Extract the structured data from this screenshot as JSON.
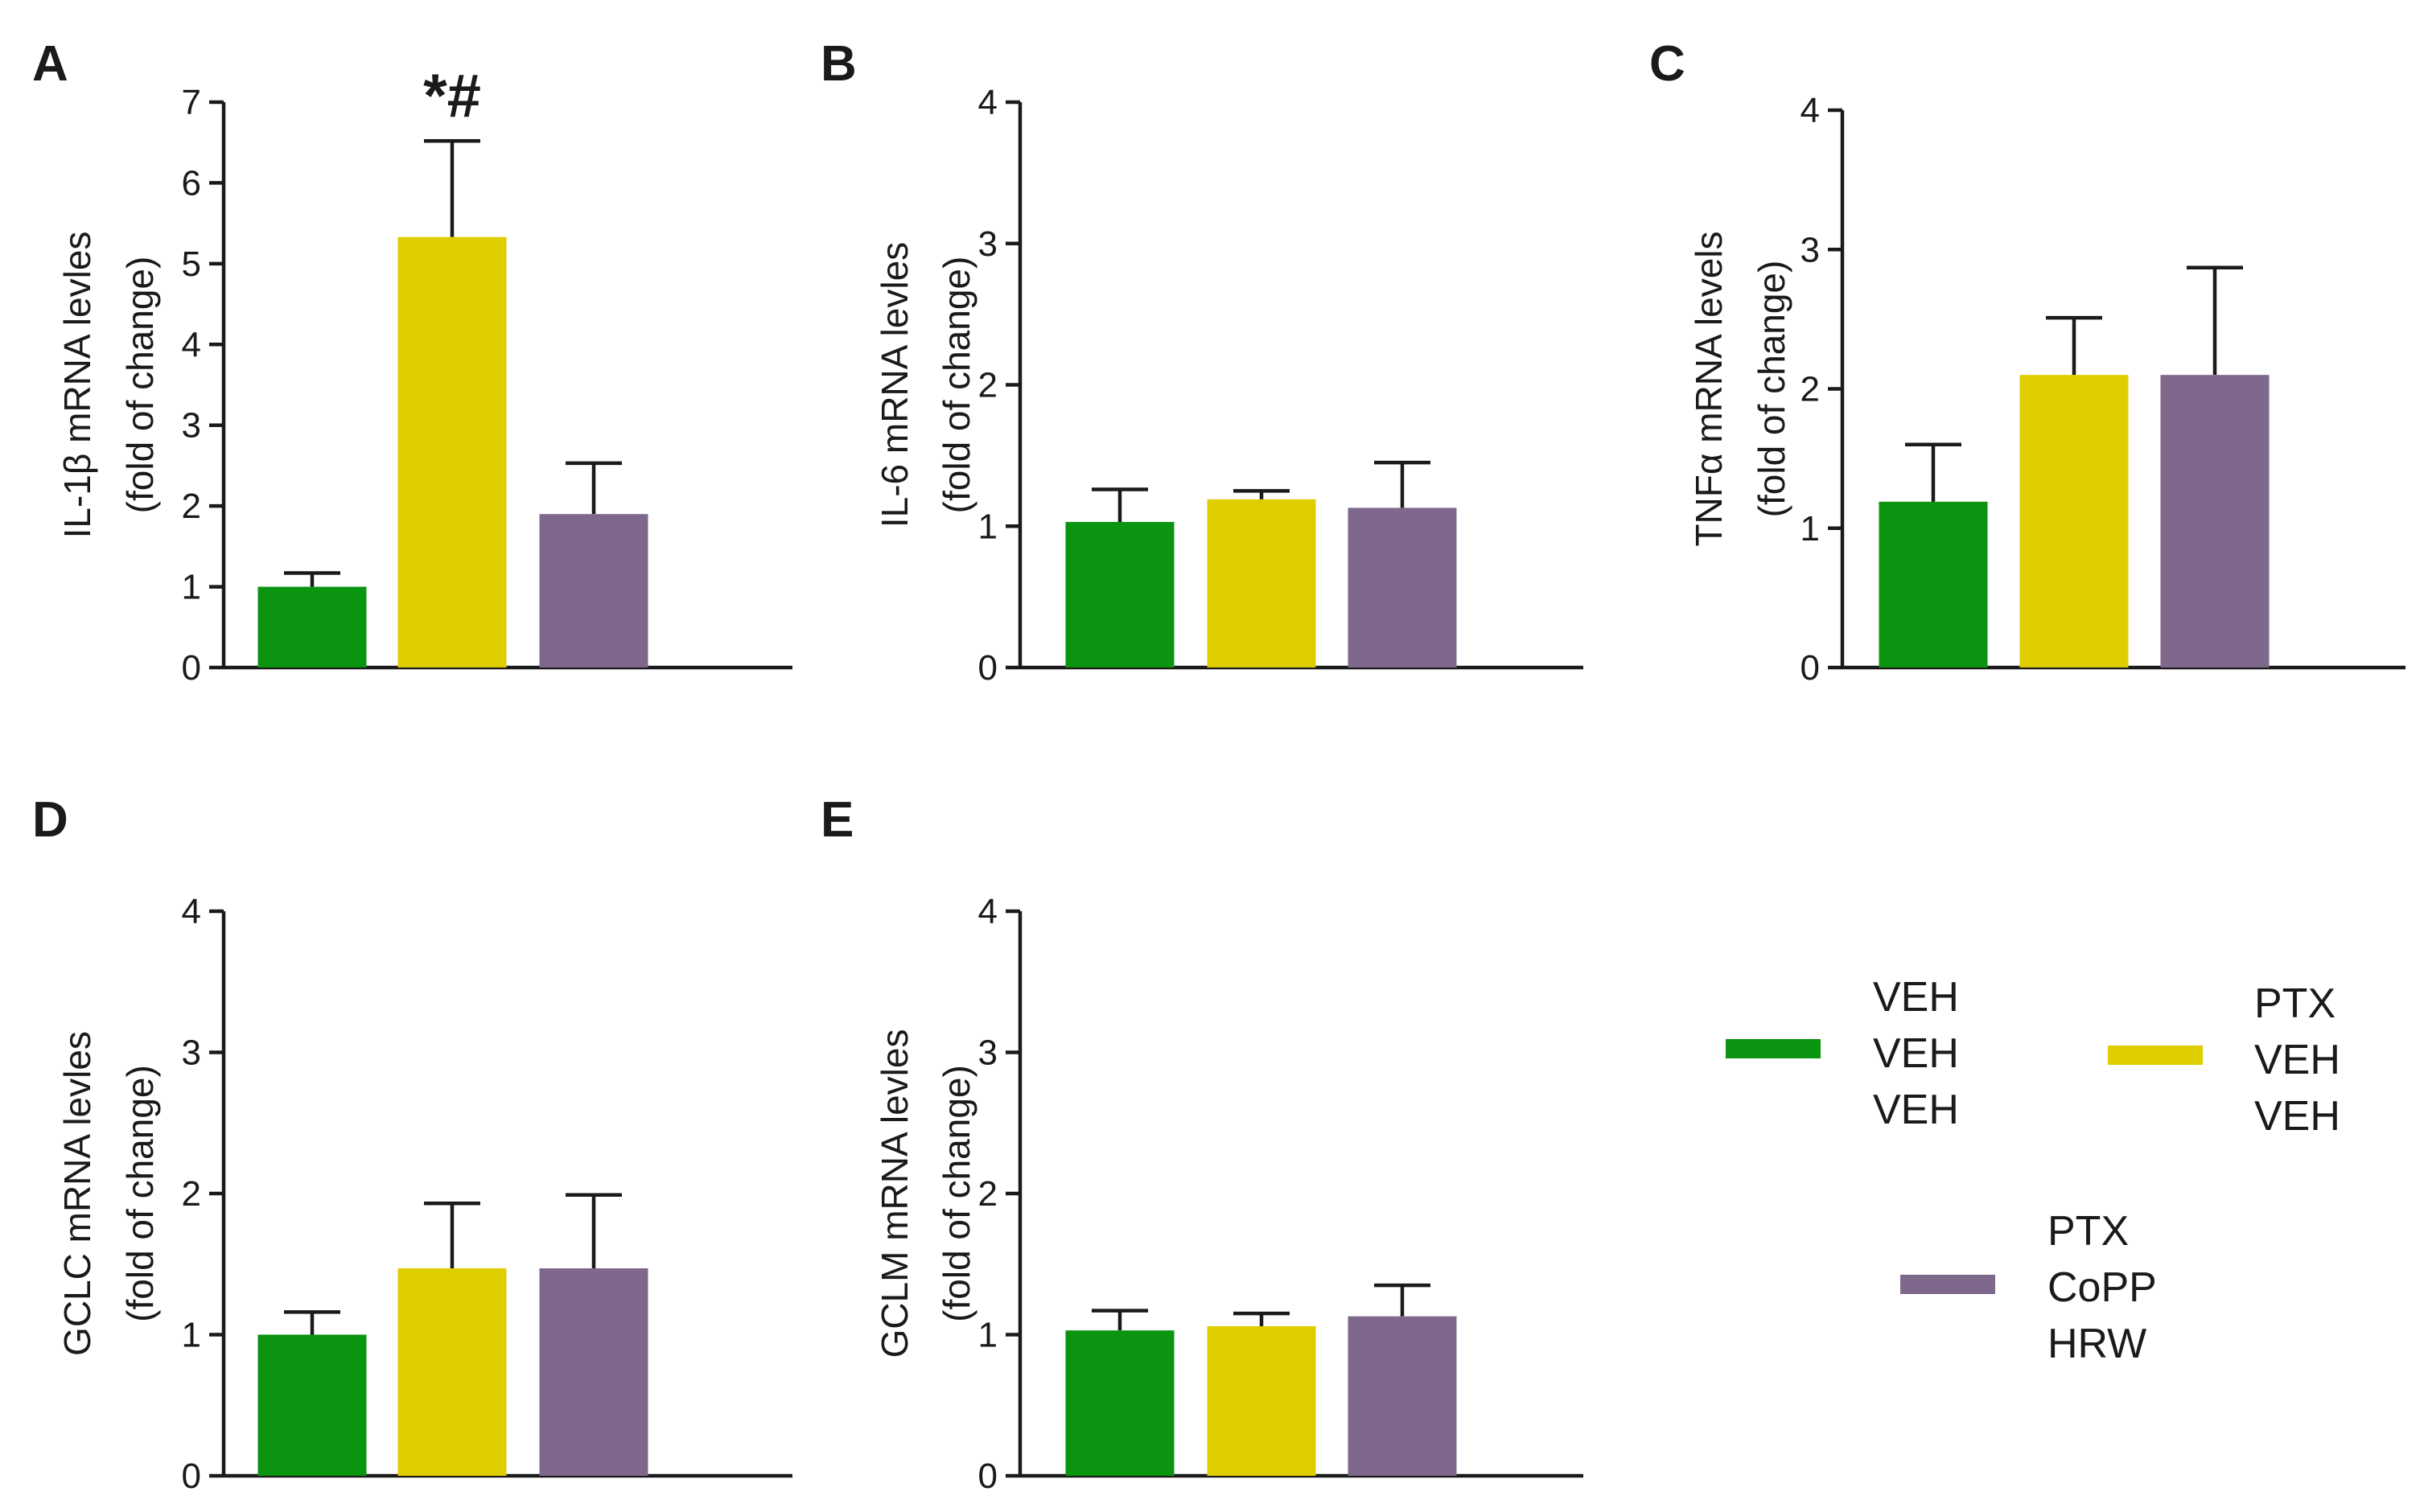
{
  "legend": {
    "groups": [
      {
        "lines": [
          "VEH",
          "VEH",
          "VEH"
        ],
        "color": "#0a9410"
      },
      {
        "lines": [
          "PTX",
          "VEH",
          "VEH"
        ],
        "color": "#dece00"
      },
      {
        "lines": [
          "PTX",
          "CoPP",
          "HRW"
        ],
        "color": "#7e688c"
      }
    ]
  },
  "chart_data": [
    {
      "panel": "A",
      "type": "bar",
      "ylabel_line1": "IL-1β mRNA levles",
      "ylabel_line2": "(fold of change)",
      "ylim": [
        0,
        7
      ],
      "yticks": [
        "0",
        "1",
        "2",
        "3",
        "4",
        "5",
        "6",
        "7"
      ],
      "categories": [
        "VEH/VEH/VEH",
        "PTX/VEH/VEH",
        "PTX/CoPP/HRW"
      ],
      "values": [
        1.0,
        5.33,
        1.9
      ],
      "errors": [
        0.17,
        1.19,
        0.63
      ],
      "annotation": "*#"
    },
    {
      "panel": "B",
      "type": "bar",
      "ylabel_line1": "IL-6  mRNA levles",
      "ylabel_line2": "(fold of change)",
      "ylim": [
        0,
        4
      ],
      "yticks": [
        "0",
        "1",
        "2",
        "3",
        "4"
      ],
      "categories": [
        "VEH/VEH/VEH",
        "PTX/VEH/VEH",
        "PTX/CoPP/HRW"
      ],
      "values": [
        1.03,
        1.19,
        1.13
      ],
      "errors": [
        0.23,
        0.06,
        0.32
      ]
    },
    {
      "panel": "C",
      "type": "bar",
      "ylabel_line1": "TNFα mRNA levels",
      "ylabel_line2": "(fold of change)",
      "ylim": [
        0,
        4
      ],
      "yticks": [
        "0",
        "1",
        "2",
        "3",
        "4"
      ],
      "categories": [
        "VEH/VEH/VEH",
        "PTX/VEH/VEH",
        "PTX/CoPP/HRW"
      ],
      "values": [
        1.19,
        2.1,
        2.1
      ],
      "errors": [
        0.41,
        0.41,
        0.77
      ]
    },
    {
      "panel": "D",
      "type": "bar",
      "ylabel_line1": "GCLC mRNA levles",
      "ylabel_line2": "(fold of change)",
      "ylim": [
        0,
        4
      ],
      "yticks": [
        "0",
        "1",
        "2",
        "3",
        "4"
      ],
      "categories": [
        "VEH/VEH/VEH",
        "PTX/VEH/VEH",
        "PTX/CoPP/HRW"
      ],
      "values": [
        1.0,
        1.47,
        1.47
      ],
      "errors": [
        0.16,
        0.46,
        0.52
      ]
    },
    {
      "panel": "E",
      "type": "bar",
      "ylabel_line1": "GCLM mRNA levles",
      "ylabel_line2": "(fold of change)",
      "ylim": [
        0,
        4
      ],
      "yticks": [
        "0",
        "1",
        "2",
        "3",
        "4"
      ],
      "categories": [
        "VEH/VEH/VEH",
        "PTX/VEH/VEH",
        "PTX/CoPP/HRW"
      ],
      "values": [
        1.03,
        1.06,
        1.13
      ],
      "errors": [
        0.14,
        0.09,
        0.22
      ]
    }
  ]
}
